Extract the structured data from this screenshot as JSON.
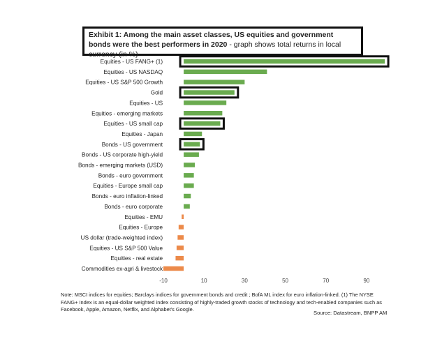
{
  "chart_data": {
    "type": "bar",
    "orientation": "horizontal",
    "title": "Exhibit 1: Among the main asset classes, US equities and government bonds were the best performers in 2020",
    "subtitle": " - graph shows total returns in local currency (in %)",
    "categories": [
      "Equities - US FANG+ (1)",
      "Equities - US NASDAQ",
      "Equities - US S&P 500 Growth",
      "Gold",
      "Equities - US",
      "Equities - emerging markets",
      "Equities - US small cap",
      "Equities - Japan",
      "Bonds - US government",
      "Bonds - US corporate high-yield",
      "Bonds - emerging markets (USD)",
      "Bonds - euro government",
      "Equities - Europe small cap",
      "Bonds - euro inflation-linked",
      "Bonds - euro corporate",
      "Equities - EMU",
      "Equities - Europe",
      "US dollar (trade-weighted index)",
      "Equities - US S&P 500 Value",
      "Equities - real estate",
      "Commodities ex-agri & livestock"
    ],
    "values": [
      99,
      41,
      30,
      25,
      21,
      19,
      18,
      9,
      8,
      7.5,
      5.5,
      5,
      5,
      3.5,
      3,
      -1,
      -2.5,
      -3,
      -3.5,
      -4,
      -10
    ],
    "highlighted": [
      0,
      3,
      6,
      8
    ],
    "xlim": [
      -10,
      100
    ],
    "xticks": [
      -10,
      10,
      30,
      50,
      70,
      90
    ],
    "positive_color": "#6aab4f",
    "negative_color": "#ec8a4a",
    "highlight_color": "#111111",
    "grid": false,
    "legend": "none"
  },
  "footnote": "Note: MSCI indices for equities; Barclays indices for government bonds and credit ; BofA ML index for euro inflation-linked. (1) The NYSE FANG+ Index is an equal-dollar weighted index consisting of highly-traded growth stocks of technology and tech-enabled companies such as Facebook, Apple, Amazon, Netflix, and Alphabet's Google.",
  "source": "Source: Datastream, BNPP AM"
}
